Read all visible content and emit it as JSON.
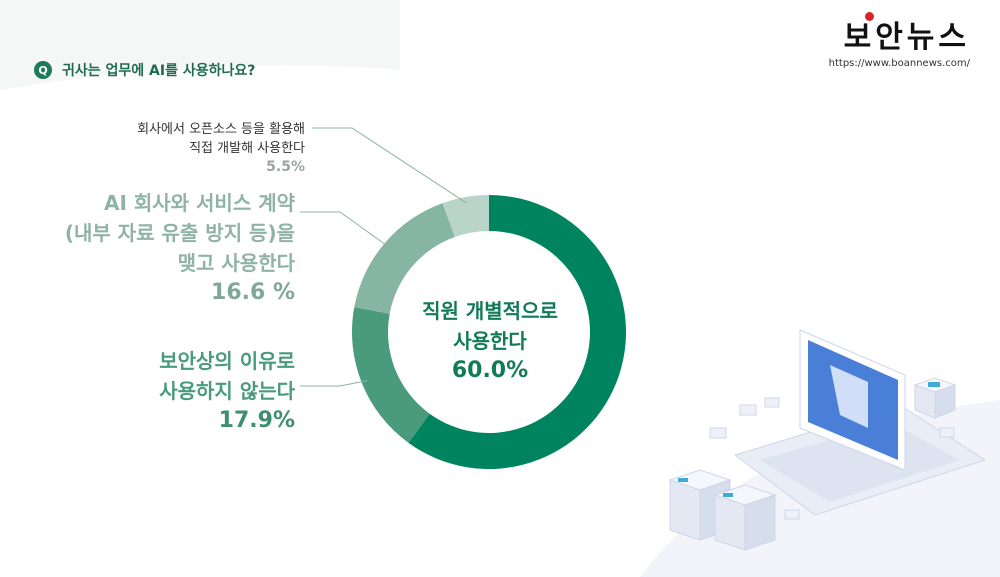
{
  "question": {
    "badge": "Q",
    "text": "귀사는 업무에 AI를 사용하나요?"
  },
  "logo": {
    "title": "보안뉴스",
    "url": "https://www.boannews.com/"
  },
  "chart_data": {
    "type": "pie",
    "donut": true,
    "slices": [
      {
        "label_lines": [
          "직원 개별적으로",
          "사용한다"
        ],
        "value": 60.0,
        "display": "60.0%",
        "color": "#00845f"
      },
      {
        "label_lines": [
          "보안상의 이유로",
          "사용하지 않는다"
        ],
        "value": 17.9,
        "display": "17.9%",
        "color": "#4a9a7c"
      },
      {
        "label_lines": [
          "AI 회사와 서비스 계약",
          "(내부 자료 유출 방지 등)을",
          "맺고 사용한다"
        ],
        "value": 16.6,
        "display": "16.6 %",
        "color": "#86b6a3"
      },
      {
        "label_lines": [
          "회사에서 오픈소스 등을 활용해",
          "직접 개발해 사용한다"
        ],
        "value": 5.5,
        "display": "5.5%",
        "color": "#b9d5c9"
      }
    ]
  },
  "colors": {
    "accent": "#1f7a5a",
    "logo_dot": "#d8232a"
  }
}
